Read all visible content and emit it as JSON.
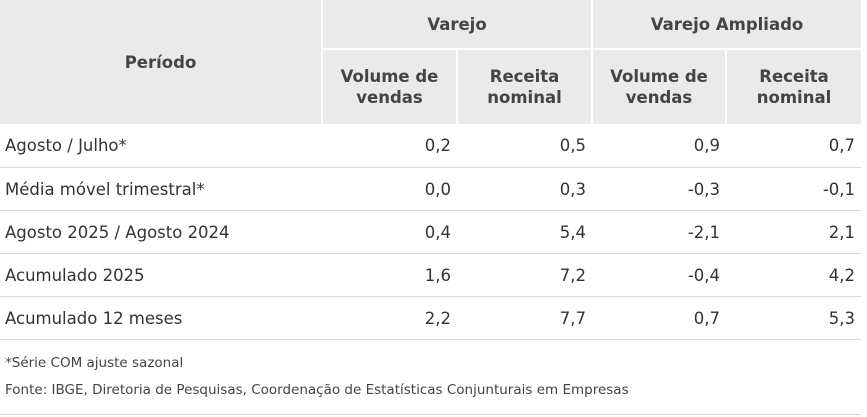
{
  "header": {
    "periodo": "Período",
    "groups": [
      "Varejo",
      "Varejo Ampliado"
    ],
    "subheaders": [
      [
        "Volume de",
        "vendas"
      ],
      [
        "Receita",
        "nominal"
      ],
      [
        "Volume de",
        "vendas"
      ],
      [
        "Receita",
        "nominal"
      ]
    ]
  },
  "rows": [
    {
      "label": "Agosto / Julho*",
      "values": [
        "0,2",
        "0,5",
        "0,9",
        "0,7"
      ]
    },
    {
      "label": "Média móvel trimestral*",
      "values": [
        "0,0",
        "0,3",
        "-0,3",
        "-0,1"
      ]
    },
    {
      "label": "Agosto 2025 / Agosto 2024",
      "values": [
        "0,4",
        "5,4",
        "-2,1",
        "2,1"
      ]
    },
    {
      "label": "Acumulado 2025",
      "values": [
        "1,6",
        "7,2",
        "-0,4",
        "4,2"
      ]
    },
    {
      "label": "Acumulado 12 meses",
      "values": [
        "2,2",
        "7,7",
        "0,7",
        "5,3"
      ]
    }
  ],
  "notes": {
    "ajuste": "*Série COM ajuste sazonal",
    "fonte": "Fonte: IBGE, Diretoria de Pesquisas, Coordenação de Estatísticas Conjunturais em Empresas"
  }
}
